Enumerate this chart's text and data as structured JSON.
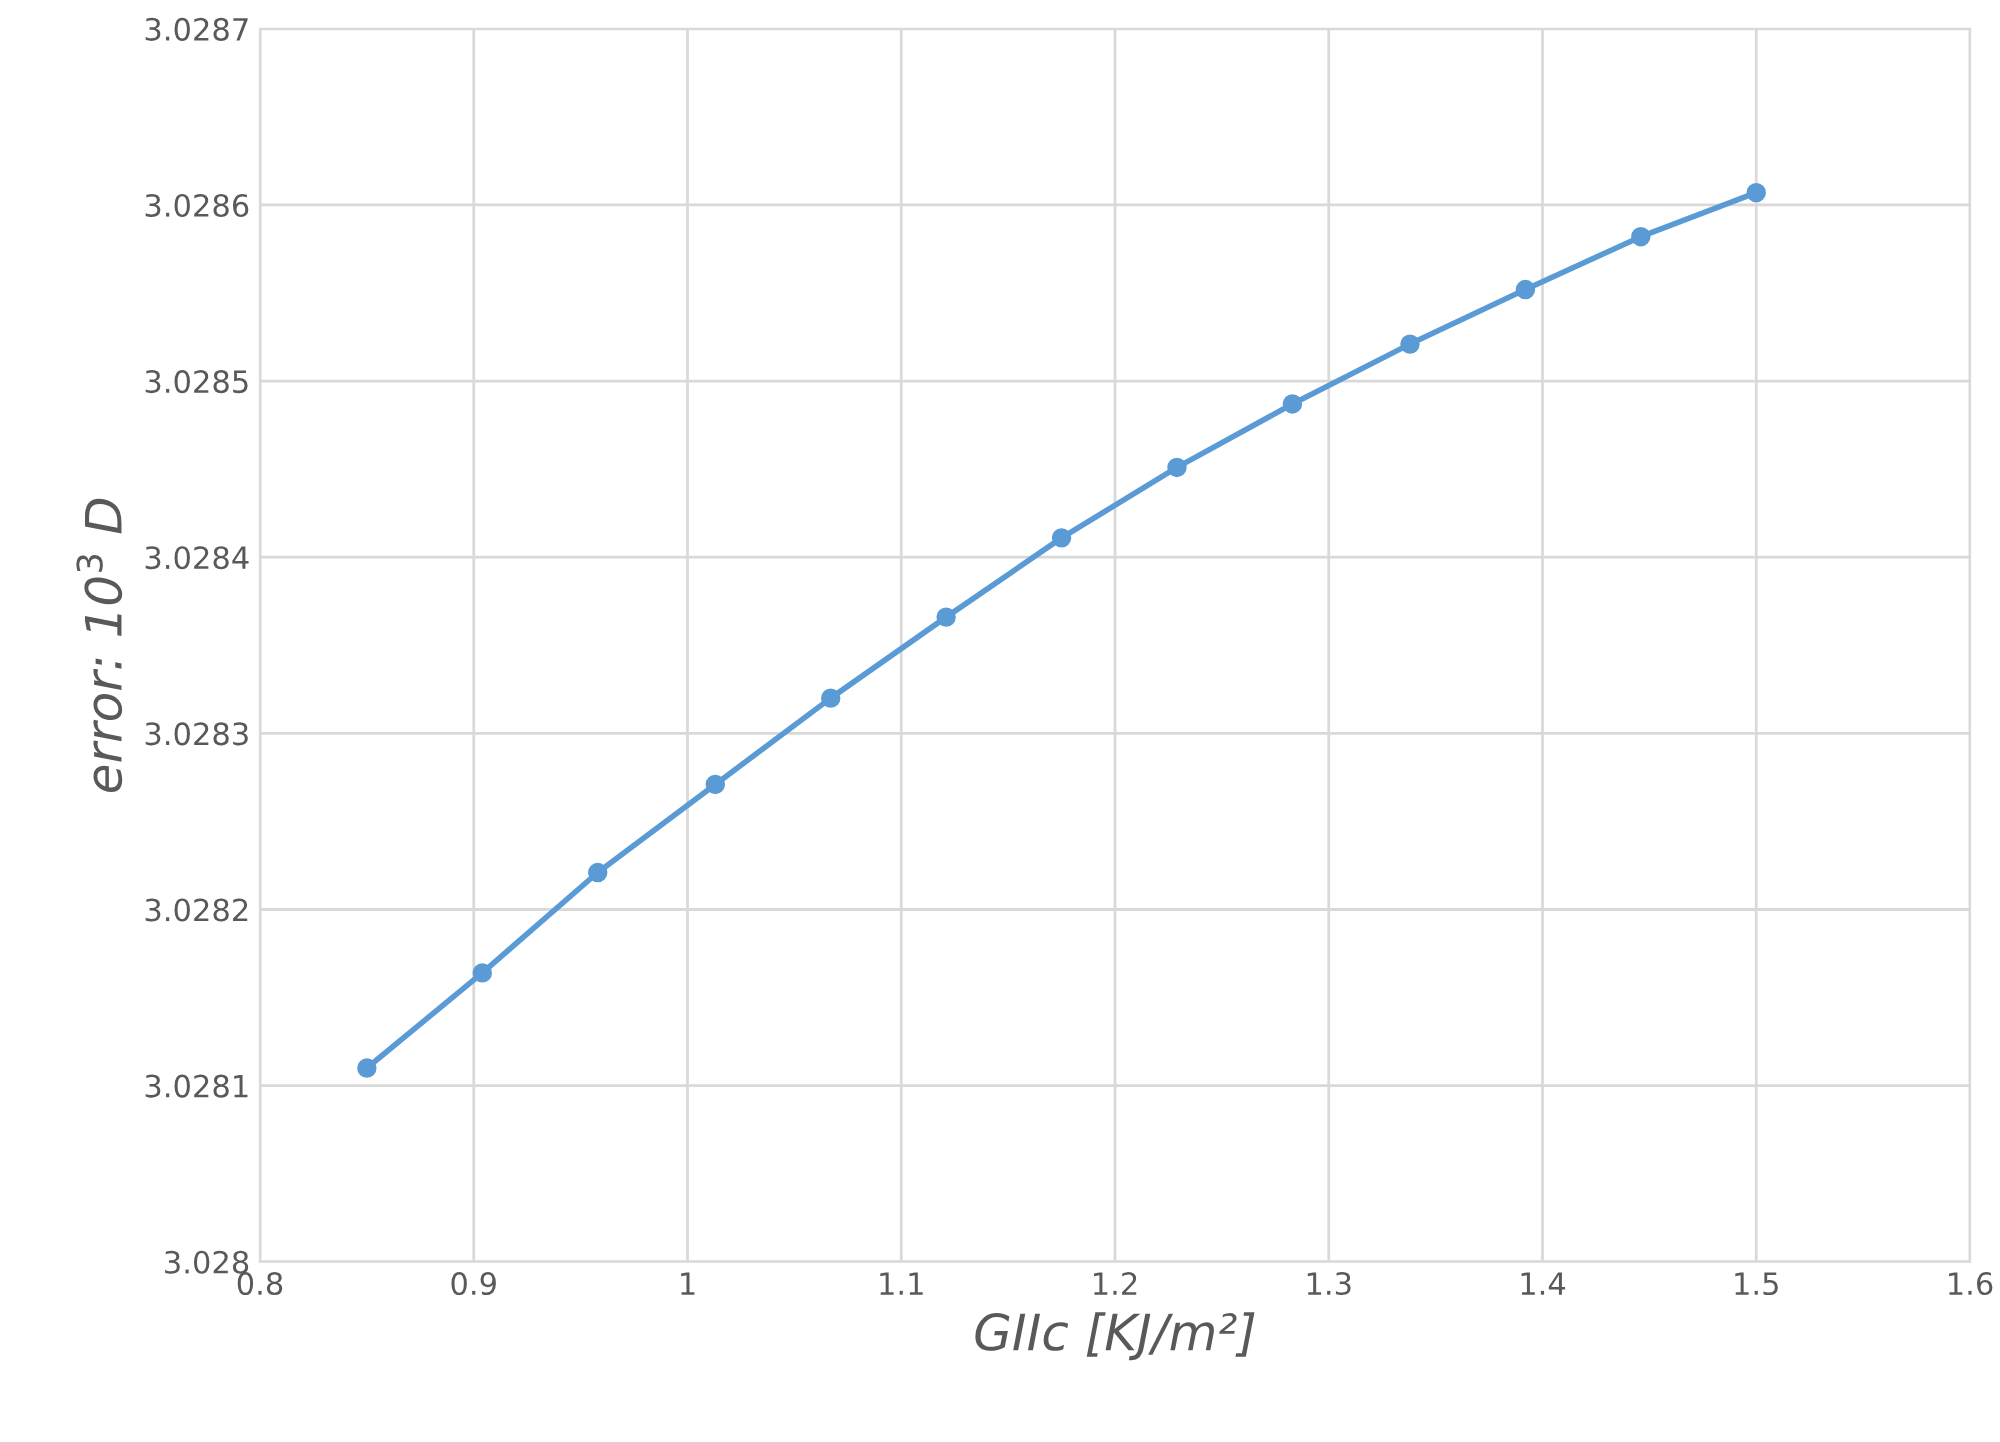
{
  "chart_data": {
    "type": "line",
    "xlabel": "GIIc [KJ/m²]",
    "ylabel": "error: 10$^{3}$ D",
    "x": [
      0.85,
      0.904,
      0.958,
      1.013,
      1.067,
      1.121,
      1.175,
      1.229,
      1.283,
      1.338,
      1.392,
      1.446,
      1.5
    ],
    "series": [
      {
        "color": "#5b9bd5",
        "values": [
          3.02811,
          3.028164,
          3.028221,
          3.028271,
          3.02832,
          3.028366,
          3.028411,
          3.028451,
          3.028487,
          3.028521,
          3.028552,
          3.028582,
          3.028607
        ]
      }
    ],
    "xlim": [
      0.8,
      1.6
    ],
    "xticks": [
      0.8,
      0.9,
      1,
      1.1,
      1.2,
      1.3,
      1.4,
      1.5,
      1.6
    ],
    "ylim": [
      3.028,
      3.0287
    ],
    "yticks": [
      3.028,
      3.0281,
      3.0282,
      3.0283,
      3.0284,
      3.0285,
      3.0286,
      3.0287
    ],
    "grid": true,
    "marker": "circle",
    "line_style": "solid"
  }
}
